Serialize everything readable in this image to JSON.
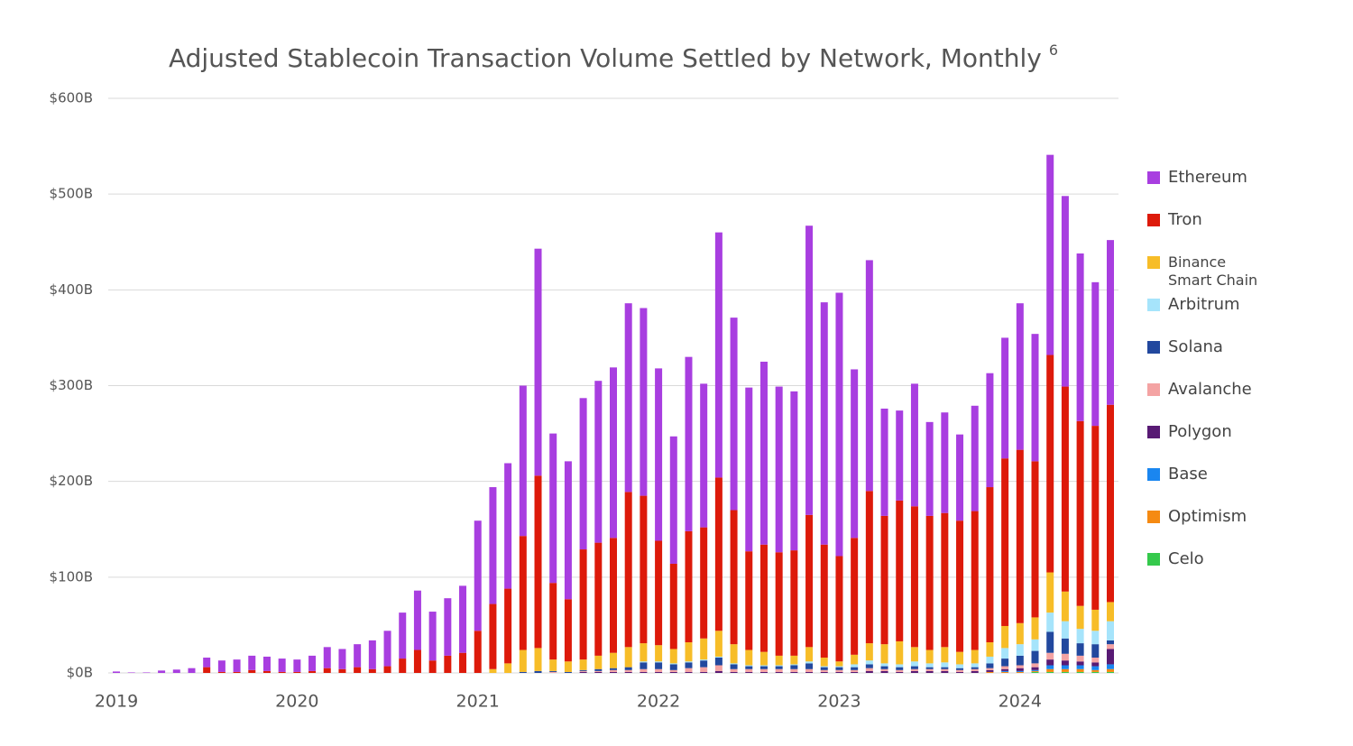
{
  "chart_data": {
    "type": "stacked_bar",
    "title": "Adjusted Stablecoin Transaction Volume Settled by Network, Monthly",
    "title_note": "6",
    "categories": [
      "2019",
      null,
      null,
      null,
      null,
      null,
      null,
      null,
      null,
      null,
      null,
      null,
      "2020",
      null,
      null,
      null,
      null,
      null,
      null,
      null,
      null,
      null,
      null,
      null,
      "2021",
      null,
      null,
      null,
      null,
      null,
      null,
      null,
      null,
      null,
      null,
      null,
      "2022",
      null,
      null,
      null,
      null,
      null,
      null,
      null,
      null,
      null,
      null,
      null,
      "2023",
      null,
      null,
      null,
      null,
      null,
      null,
      null,
      null,
      null,
      null,
      null,
      "2024",
      null,
      null,
      null,
      null,
      null,
      null
    ],
    "ylim": [
      0,
      600
    ],
    "yticks": [
      {
        "value": 0,
        "label": "$0B"
      },
      {
        "value": 100,
        "label": "$100B"
      },
      {
        "value": 200,
        "label": "$200B"
      },
      {
        "value": 300,
        "label": "$300B"
      },
      {
        "value": 400,
        "label": "$400B"
      },
      {
        "value": 500,
        "label": "$500B"
      },
      {
        "value": 600,
        "label": "$600B"
      }
    ],
    "grid": true,
    "legend": "right",
    "series": [
      {
        "name": "Ethereum",
        "color": "#a83ee0",
        "values": [
          1.5,
          0.5,
          0.5,
          2.5,
          3.5,
          5,
          10,
          12,
          13,
          15,
          15,
          14,
          13,
          16,
          22,
          21,
          24,
          30,
          37,
          48,
          62,
          51,
          60,
          70,
          115,
          122,
          131,
          157,
          237,
          156,
          144,
          158,
          169,
          178,
          197,
          196,
          180,
          133,
          182,
          150,
          256,
          201,
          171,
          191,
          173,
          166,
          302,
          253,
          275,
          176,
          241,
          112,
          94,
          128,
          98,
          105,
          90,
          110,
          119,
          126,
          153,
          133,
          209,
          199,
          175,
          150,
          172
        ]
      },
      {
        "name": "Tron",
        "color": "#dd1a0a",
        "values": [
          0,
          0,
          0,
          0,
          0,
          0,
          6,
          1,
          1,
          3,
          2,
          1,
          1,
          2,
          5,
          4,
          6,
          4,
          7,
          15,
          24,
          13,
          18,
          21,
          44,
          68,
          78,
          119,
          180,
          80,
          65,
          115,
          118,
          120,
          162,
          154,
          109,
          89,
          116,
          116,
          160,
          140,
          103,
          112,
          108,
          110,
          138,
          118,
          110,
          122,
          159,
          134,
          147,
          147,
          140,
          140,
          137,
          145,
          162,
          175,
          181,
          163,
          227,
          214,
          193,
          192,
          206
        ]
      },
      {
        "name": "Binance Smart Chain",
        "color": "#f7bd28",
        "values": [
          0,
          0,
          0,
          0,
          0,
          0,
          0,
          0,
          0,
          0,
          0,
          0,
          0,
          0,
          0,
          0,
          0,
          0,
          0,
          0,
          0,
          0,
          0,
          0,
          0,
          4,
          10,
          23,
          24,
          12,
          11,
          11,
          14,
          16,
          21,
          19,
          17,
          15,
          20,
          22,
          27,
          20,
          16,
          14,
          10,
          9,
          15,
          9,
          5,
          10,
          18,
          20,
          24,
          15,
          14,
          16,
          13,
          14,
          15,
          23,
          22,
          23,
          42,
          31,
          24,
          22,
          20
        ]
      },
      {
        "name": "Arbitrum",
        "color": "#a6e4fb",
        "values": [
          0,
          0,
          0,
          0,
          0,
          0,
          0,
          0,
          0,
          0,
          0,
          0,
          0,
          0,
          0,
          0,
          0,
          0,
          0,
          0,
          0,
          0,
          0,
          0,
          0,
          0,
          0,
          0,
          0,
          0,
          0,
          0,
          0,
          0,
          0,
          1,
          1,
          1,
          1,
          1,
          1,
          1,
          1,
          1,
          1,
          1,
          2,
          1,
          1,
          3,
          4,
          3,
          3,
          5,
          4,
          5,
          4,
          4,
          7,
          11,
          12,
          12,
          20,
          18,
          15,
          14,
          20
        ]
      },
      {
        "name": "Solana",
        "color": "#22489e",
        "values": [
          0,
          0,
          0,
          0,
          0,
          0,
          0,
          0,
          0,
          0,
          0,
          0,
          0,
          0,
          0,
          0,
          0,
          0,
          0,
          0,
          0,
          0,
          0,
          0,
          0,
          0,
          0,
          1,
          2,
          1,
          1,
          1,
          2,
          2,
          3,
          7,
          7,
          6,
          6,
          7,
          8,
          5,
          3,
          3,
          3,
          4,
          6,
          3,
          3,
          3,
          4,
          3,
          3,
          3,
          2,
          2,
          2,
          2,
          5,
          8,
          10,
          13,
          22,
          16,
          13,
          14,
          4
        ]
      },
      {
        "name": "Avalanche",
        "color": "#f4a3a3",
        "values": [
          0,
          0,
          0,
          0,
          0,
          0,
          0,
          0,
          0,
          0,
          0,
          0,
          0,
          0,
          0,
          0,
          0,
          0,
          0,
          0,
          0,
          0,
          0,
          0,
          0,
          0,
          0,
          0,
          0,
          1,
          0,
          1,
          1,
          2,
          2,
          3,
          3,
          2,
          4,
          5,
          6,
          3,
          3,
          3,
          3,
          3,
          3,
          2,
          2,
          2,
          3,
          2,
          2,
          2,
          2,
          2,
          2,
          2,
          2,
          3,
          3,
          4,
          7,
          7,
          6,
          5,
          5
        ]
      },
      {
        "name": "Polygon",
        "color": "#581a74",
        "values": [
          0,
          0,
          0,
          0,
          0,
          0,
          0,
          0,
          0,
          0,
          0,
          0,
          0,
          0,
          0,
          0,
          0,
          0,
          0,
          0,
          0,
          0,
          0,
          0,
          0,
          0,
          0,
          0,
          0,
          0,
          0,
          1,
          1,
          1,
          1,
          1,
          1,
          1,
          1,
          1,
          2,
          1,
          1,
          1,
          1,
          1,
          1,
          1,
          1,
          1,
          2,
          2,
          1,
          2,
          2,
          2,
          1,
          2,
          2,
          2,
          3,
          3,
          6,
          5,
          4,
          4,
          16
        ]
      },
      {
        "name": "Base",
        "color": "#1a86f0",
        "values": [
          0,
          0,
          0,
          0,
          0,
          0,
          0,
          0,
          0,
          0,
          0,
          0,
          0,
          0,
          0,
          0,
          0,
          0,
          0,
          0,
          0,
          0,
          0,
          0,
          0,
          0,
          0,
          0,
          0,
          0,
          0,
          0,
          0,
          0,
          0,
          0,
          0,
          0,
          0,
          0,
          0,
          0,
          0,
          0,
          0,
          0,
          0,
          0,
          0,
          0,
          0,
          0,
          0,
          0,
          0,
          0,
          0,
          0,
          0,
          1,
          1,
          1,
          4,
          4,
          4,
          4,
          5
        ]
      },
      {
        "name": "Optimism",
        "color": "#f58a12",
        "values": [
          0,
          0,
          0,
          0,
          0,
          0,
          0,
          0,
          0,
          0,
          0,
          0,
          0,
          0,
          0,
          0,
          0,
          0,
          0,
          0,
          0,
          0,
          0,
          0,
          0,
          0,
          0,
          0,
          0,
          0,
          0,
          0,
          0,
          0,
          0,
          0,
          0,
          0,
          0,
          0,
          0,
          0,
          0,
          0,
          0,
          0,
          0,
          0,
          0,
          0,
          0,
          0,
          0,
          0,
          0,
          0,
          0,
          0,
          1,
          1,
          1,
          1,
          3,
          3,
          3,
          2,
          3
        ]
      },
      {
        "name": "Celo",
        "color": "#35c94c",
        "values": [
          0,
          0,
          0,
          0,
          0,
          0,
          0,
          0,
          0,
          0,
          0,
          0,
          0,
          0,
          0,
          0,
          0,
          0,
          0,
          0,
          0,
          0,
          0,
          0,
          0,
          0,
          0,
          0,
          0,
          0,
          0,
          0,
          0,
          0,
          0,
          0,
          0,
          0,
          0,
          0,
          0,
          0,
          0,
          0,
          0,
          0,
          0,
          0,
          0,
          0,
          0,
          0,
          0,
          0,
          0,
          0,
          0,
          0,
          0,
          0,
          0,
          1,
          1,
          1,
          1,
          1,
          1
        ]
      }
    ]
  }
}
